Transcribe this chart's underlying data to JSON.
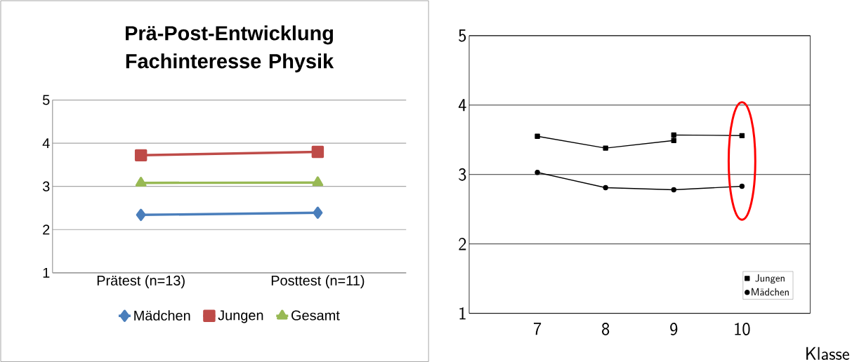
{
  "chart_data": [
    {
      "type": "line",
      "title": "Prä-Post-Entwicklung Fachinteresse Physik",
      "categories": [
        "Prätest (n=13)",
        "Posttest (n=11)"
      ],
      "series": [
        {
          "name": "Mädchen",
          "color": "#4a7ebb",
          "values": [
            2.34,
            2.39
          ],
          "marker": "diamond"
        },
        {
          "name": "Jungen",
          "color": "#be4b48",
          "values": [
            3.72,
            3.8
          ],
          "marker": "square"
        },
        {
          "name": "Gesamt",
          "color": "#98b954",
          "values": [
            3.08,
            3.09
          ],
          "marker": "triangle"
        }
      ],
      "ylim": [
        1,
        5
      ],
      "yticks": [
        1,
        2,
        3,
        4,
        5
      ],
      "grid": "y",
      "legend": "bottom"
    },
    {
      "type": "line",
      "xlabel": "Klasse",
      "series": [
        {
          "name": "Jungen",
          "color": "#000000",
          "x": [
            7,
            8,
            9,
            9,
            10
          ],
          "values": [
            3.55,
            3.38,
            3.49,
            3.57,
            3.56
          ],
          "marker": "square"
        },
        {
          "name": "Mädchen",
          "color": "#000000",
          "x": [
            7,
            8,
            9,
            10
          ],
          "values": [
            3.03,
            2.81,
            2.78,
            2.83
          ],
          "marker": "circle"
        }
      ],
      "xlim": [
        6,
        11
      ],
      "xticks": [
        7,
        8,
        9,
        10
      ],
      "ylim": [
        1,
        5
      ],
      "yticks": [
        1,
        2,
        3,
        4,
        5
      ],
      "grid": "y",
      "legend": "bottom right"
    }
  ]
}
